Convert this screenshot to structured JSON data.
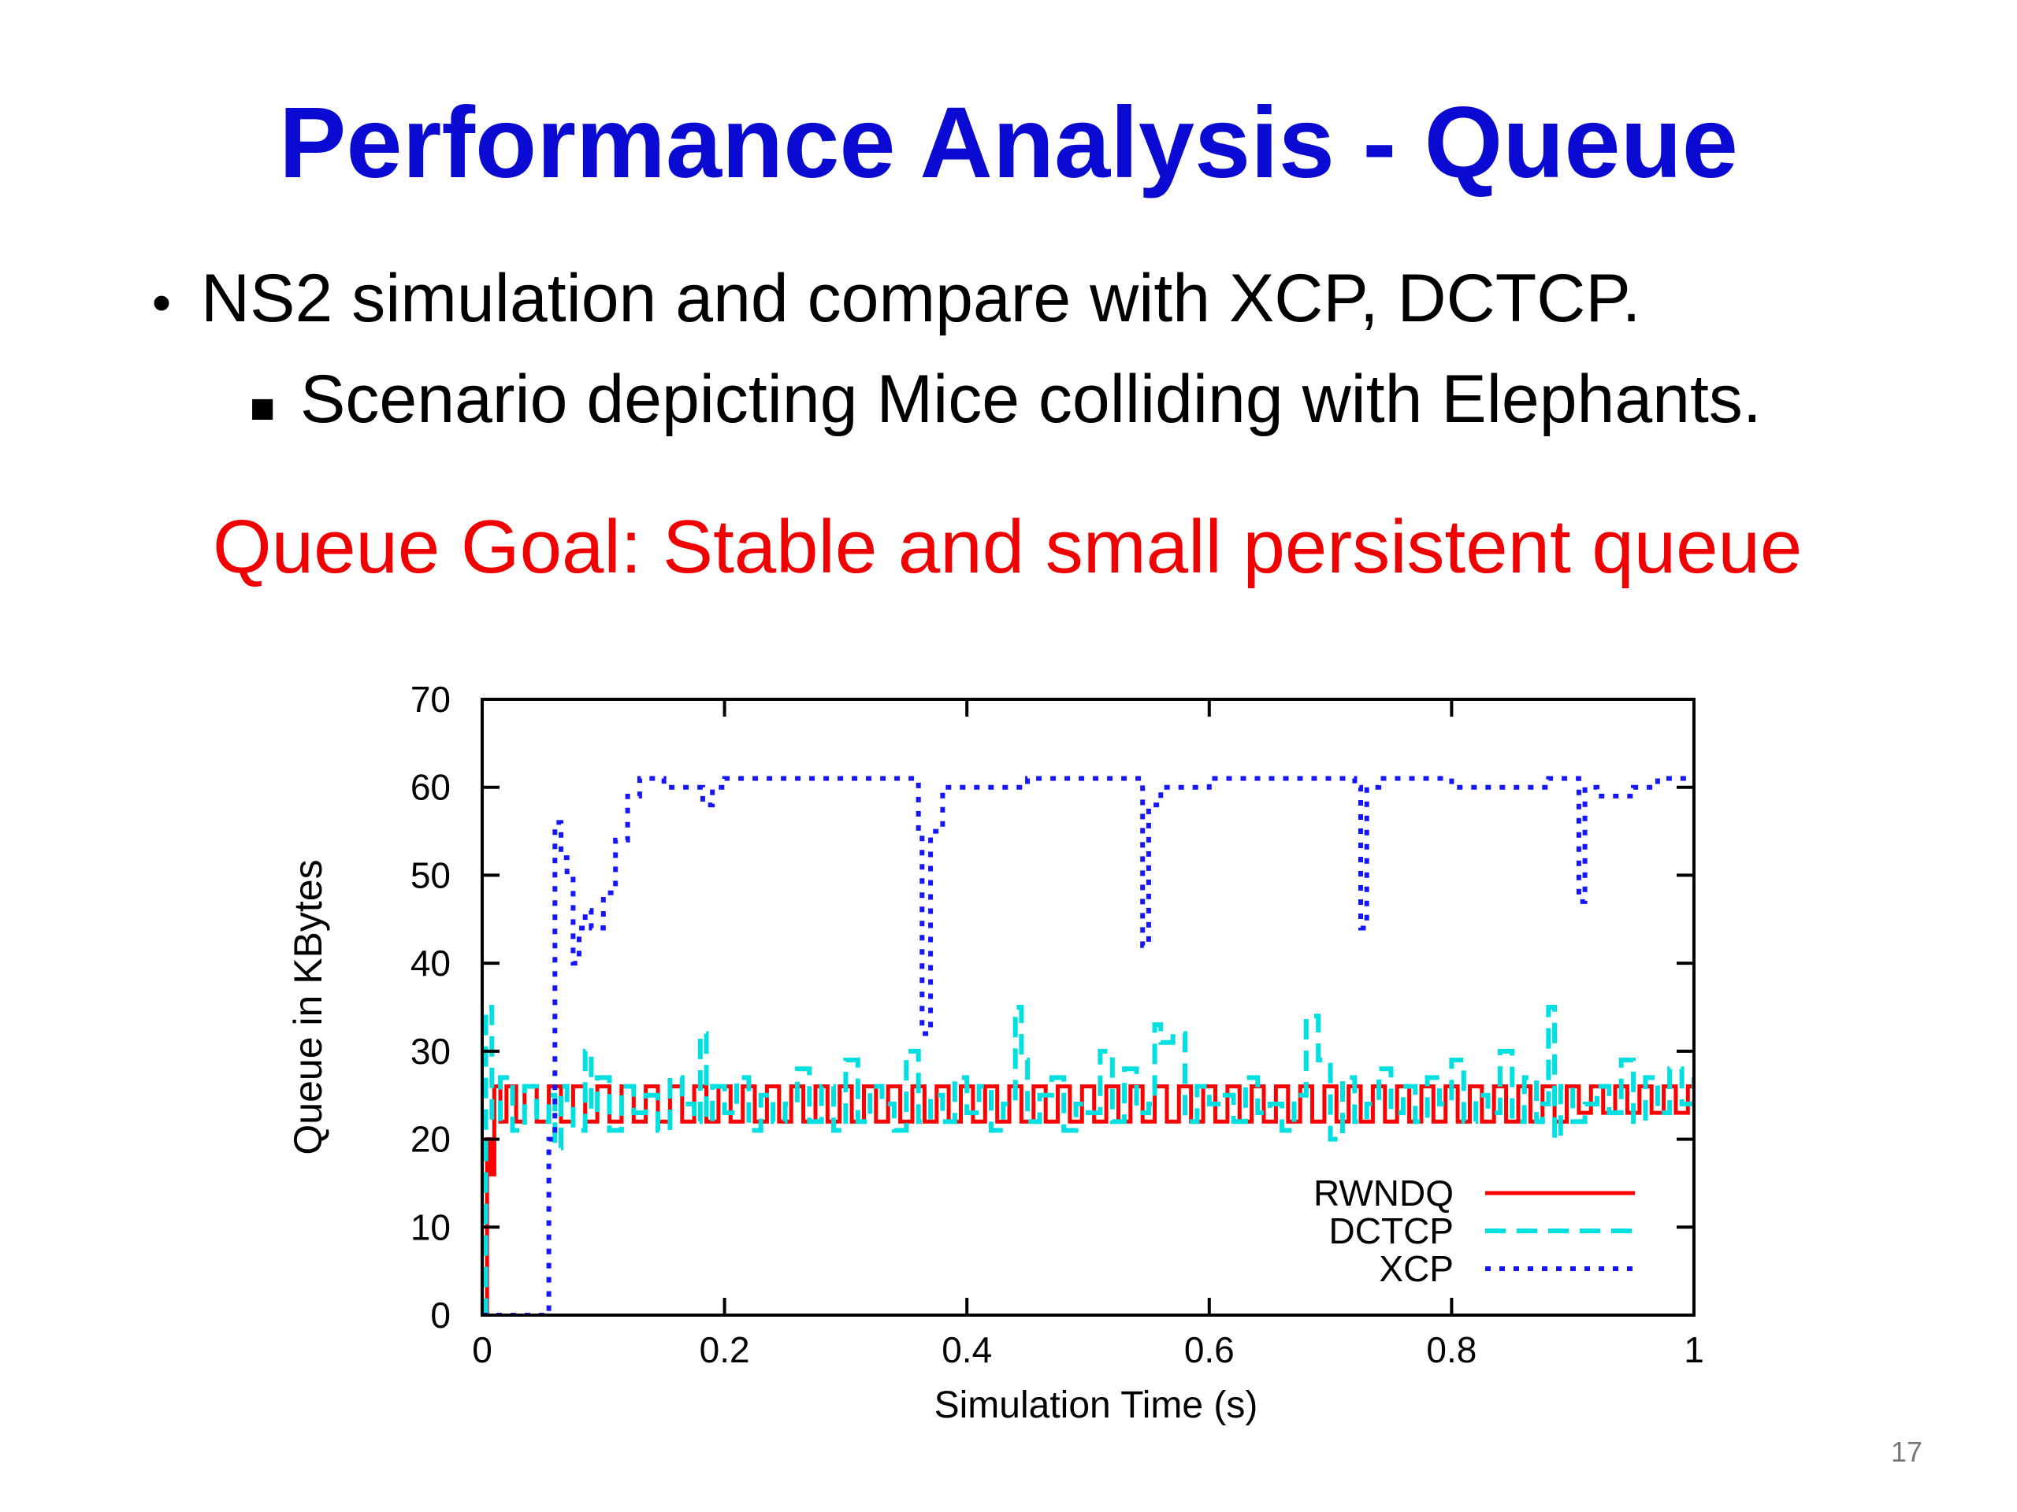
{
  "slide": {
    "title": "Performance Analysis - Queue",
    "bullet1": "NS2 simulation and compare with XCP, DCTCP.",
    "bullet2": "Scenario depicting Mice colliding with Elephants.",
    "goal": "Queue Goal: Stable and small persistent queue",
    "page_number": "17",
    "colors": {
      "title": "#0a0ad2",
      "goal": "#f00000"
    }
  },
  "chart_data": {
    "type": "line",
    "xlabel": "Simulation Time (s)",
    "ylabel": "Queue in KBytes",
    "xlim": [
      0,
      1
    ],
    "ylim": [
      0,
      70
    ],
    "xticks": [
      0,
      0.2,
      0.4,
      0.6,
      0.8,
      1
    ],
    "xtick_labels": [
      "0",
      "0.2",
      "0.4",
      "0.6",
      "0.8",
      "1"
    ],
    "yticks": [
      0,
      10,
      20,
      30,
      40,
      50,
      60,
      70
    ],
    "ytick_labels": [
      "0",
      "10",
      "20",
      "30",
      "40",
      "50",
      "60",
      "70"
    ],
    "legend_position": "bottom-right",
    "grid": false,
    "series": [
      {
        "name": "RWNDQ",
        "color": "#ff0000",
        "dash": "solid",
        "x": [
          0,
          0.004,
          0.007,
          0.01,
          0.015,
          0.02,
          0.028,
          0.035,
          0.045,
          0.055,
          0.065,
          0.075,
          0.085,
          0.095,
          0.105,
          0.115,
          0.125,
          0.135,
          0.145,
          0.155,
          0.165,
          0.175,
          0.185,
          0.195,
          0.205,
          0.215,
          0.225,
          0.235,
          0.245,
          0.255,
          0.265,
          0.275,
          0.285,
          0.295,
          0.305,
          0.315,
          0.325,
          0.335,
          0.345,
          0.355,
          0.365,
          0.375,
          0.385,
          0.395,
          0.405,
          0.415,
          0.425,
          0.435,
          0.445,
          0.455,
          0.465,
          0.475,
          0.485,
          0.495,
          0.505,
          0.515,
          0.525,
          0.535,
          0.545,
          0.555,
          0.565,
          0.575,
          0.585,
          0.595,
          0.605,
          0.615,
          0.625,
          0.635,
          0.645,
          0.655,
          0.665,
          0.675,
          0.685,
          0.695,
          0.705,
          0.715,
          0.725,
          0.735,
          0.745,
          0.755,
          0.765,
          0.775,
          0.785,
          0.795,
          0.805,
          0.815,
          0.825,
          0.835,
          0.845,
          0.855,
          0.865,
          0.875,
          0.885,
          0.895,
          0.905,
          0.915,
          0.925,
          0.935,
          0.945,
          0.955,
          0.965,
          0.975,
          0.985,
          0.995,
          1.0
        ],
        "y": [
          0,
          20,
          16,
          26,
          22,
          26,
          22,
          26,
          22,
          26,
          22,
          26,
          22,
          26,
          22,
          26,
          22,
          26,
          22,
          26,
          22,
          26,
          22,
          26,
          22,
          26,
          22,
          26,
          22,
          26,
          22,
          26,
          22,
          26,
          22,
          26,
          22,
          26,
          22,
          26,
          22,
          26,
          22,
          26,
          22,
          26,
          22,
          26,
          22,
          26,
          22,
          26,
          22,
          26,
          22,
          26,
          22,
          26,
          22,
          26,
          22,
          26,
          22,
          26,
          22,
          26,
          22,
          26,
          22,
          26,
          22,
          26,
          22,
          26,
          22,
          26,
          22,
          26,
          22,
          26,
          22,
          26,
          22,
          26,
          22,
          26,
          22,
          26,
          22,
          26,
          22,
          26,
          22,
          26,
          23,
          26,
          23,
          26,
          23,
          26,
          23,
          26,
          23,
          26,
          26
        ]
      },
      {
        "name": "DCTCP",
        "color": "#00e0e0",
        "dash": "dashed",
        "x": [
          0,
          0.003,
          0.008,
          0.015,
          0.025,
          0.035,
          0.045,
          0.055,
          0.06,
          0.065,
          0.07,
          0.075,
          0.085,
          0.09,
          0.095,
          0.105,
          0.115,
          0.125,
          0.135,
          0.145,
          0.155,
          0.165,
          0.175,
          0.18,
          0.185,
          0.19,
          0.2,
          0.21,
          0.22,
          0.23,
          0.24,
          0.25,
          0.26,
          0.27,
          0.28,
          0.29,
          0.3,
          0.31,
          0.32,
          0.33,
          0.34,
          0.35,
          0.36,
          0.37,
          0.38,
          0.39,
          0.4,
          0.41,
          0.42,
          0.43,
          0.44,
          0.445,
          0.45,
          0.46,
          0.47,
          0.48,
          0.49,
          0.5,
          0.51,
          0.52,
          0.53,
          0.54,
          0.55,
          0.555,
          0.56,
          0.57,
          0.58,
          0.59,
          0.6,
          0.61,
          0.62,
          0.63,
          0.64,
          0.65,
          0.66,
          0.67,
          0.68,
          0.69,
          0.7,
          0.71,
          0.72,
          0.73,
          0.74,
          0.75,
          0.76,
          0.77,
          0.78,
          0.79,
          0.8,
          0.81,
          0.82,
          0.83,
          0.84,
          0.85,
          0.86,
          0.87,
          0.875,
          0.88,
          0.885,
          0.89,
          0.9,
          0.91,
          0.92,
          0.93,
          0.94,
          0.95,
          0.96,
          0.97,
          0.98,
          0.99,
          1.0
        ],
        "y": [
          0,
          35,
          22,
          27,
          21,
          26,
          22,
          25,
          19,
          26,
          24,
          21,
          30,
          23,
          27,
          21,
          26,
          23,
          25,
          21,
          27,
          24,
          22,
          32,
          22,
          26,
          23,
          27,
          21,
          25,
          22,
          24,
          28,
          22,
          26,
          21,
          29,
          22,
          26,
          24,
          21,
          30,
          22,
          25,
          22,
          27,
          23,
          26,
          21,
          24,
          35,
          29,
          22,
          25,
          27,
          21,
          24,
          23,
          30,
          22,
          28,
          23,
          24,
          33,
          31,
          32,
          22,
          26,
          24,
          25,
          22,
          27,
          23,
          24,
          21,
          25,
          34,
          29,
          20,
          27,
          22,
          24,
          28,
          23,
          26,
          22,
          27,
          24,
          29,
          22,
          25,
          23,
          30,
          22,
          27,
          22,
          24,
          35,
          20,
          26,
          22,
          24,
          26,
          23,
          29,
          22,
          27,
          23,
          28,
          24,
          27
        ]
      },
      {
        "name": "XCP",
        "color": "#1515ff",
        "dash": "dotted",
        "x": [
          0,
          0.02,
          0.05,
          0.055,
          0.06,
          0.065,
          0.07,
          0.075,
          0.08,
          0.085,
          0.09,
          0.1,
          0.11,
          0.12,
          0.13,
          0.15,
          0.18,
          0.182,
          0.19,
          0.2,
          0.25,
          0.3,
          0.35,
          0.36,
          0.363,
          0.37,
          0.38,
          0.4,
          0.45,
          0.5,
          0.54,
          0.545,
          0.55,
          0.56,
          0.6,
          0.65,
          0.7,
          0.72,
          0.725,
          0.73,
          0.74,
          0.8,
          0.85,
          0.88,
          0.9,
          0.905,
          0.91,
          0.92,
          0.95,
          0.97,
          0.99,
          1.0
        ],
        "y": [
          0,
          0,
          0,
          20,
          56,
          52,
          50,
          40,
          44,
          46,
          44,
          48,
          54,
          59,
          61,
          60,
          60,
          58,
          60,
          61,
          61,
          61,
          61,
          55,
          32,
          55,
          60,
          60,
          61,
          61,
          61,
          42,
          58,
          60,
          61,
          61,
          61,
          60,
          44,
          60,
          61,
          60,
          60,
          61,
          61,
          47,
          60,
          59,
          60,
          61,
          61,
          61
        ]
      }
    ]
  }
}
